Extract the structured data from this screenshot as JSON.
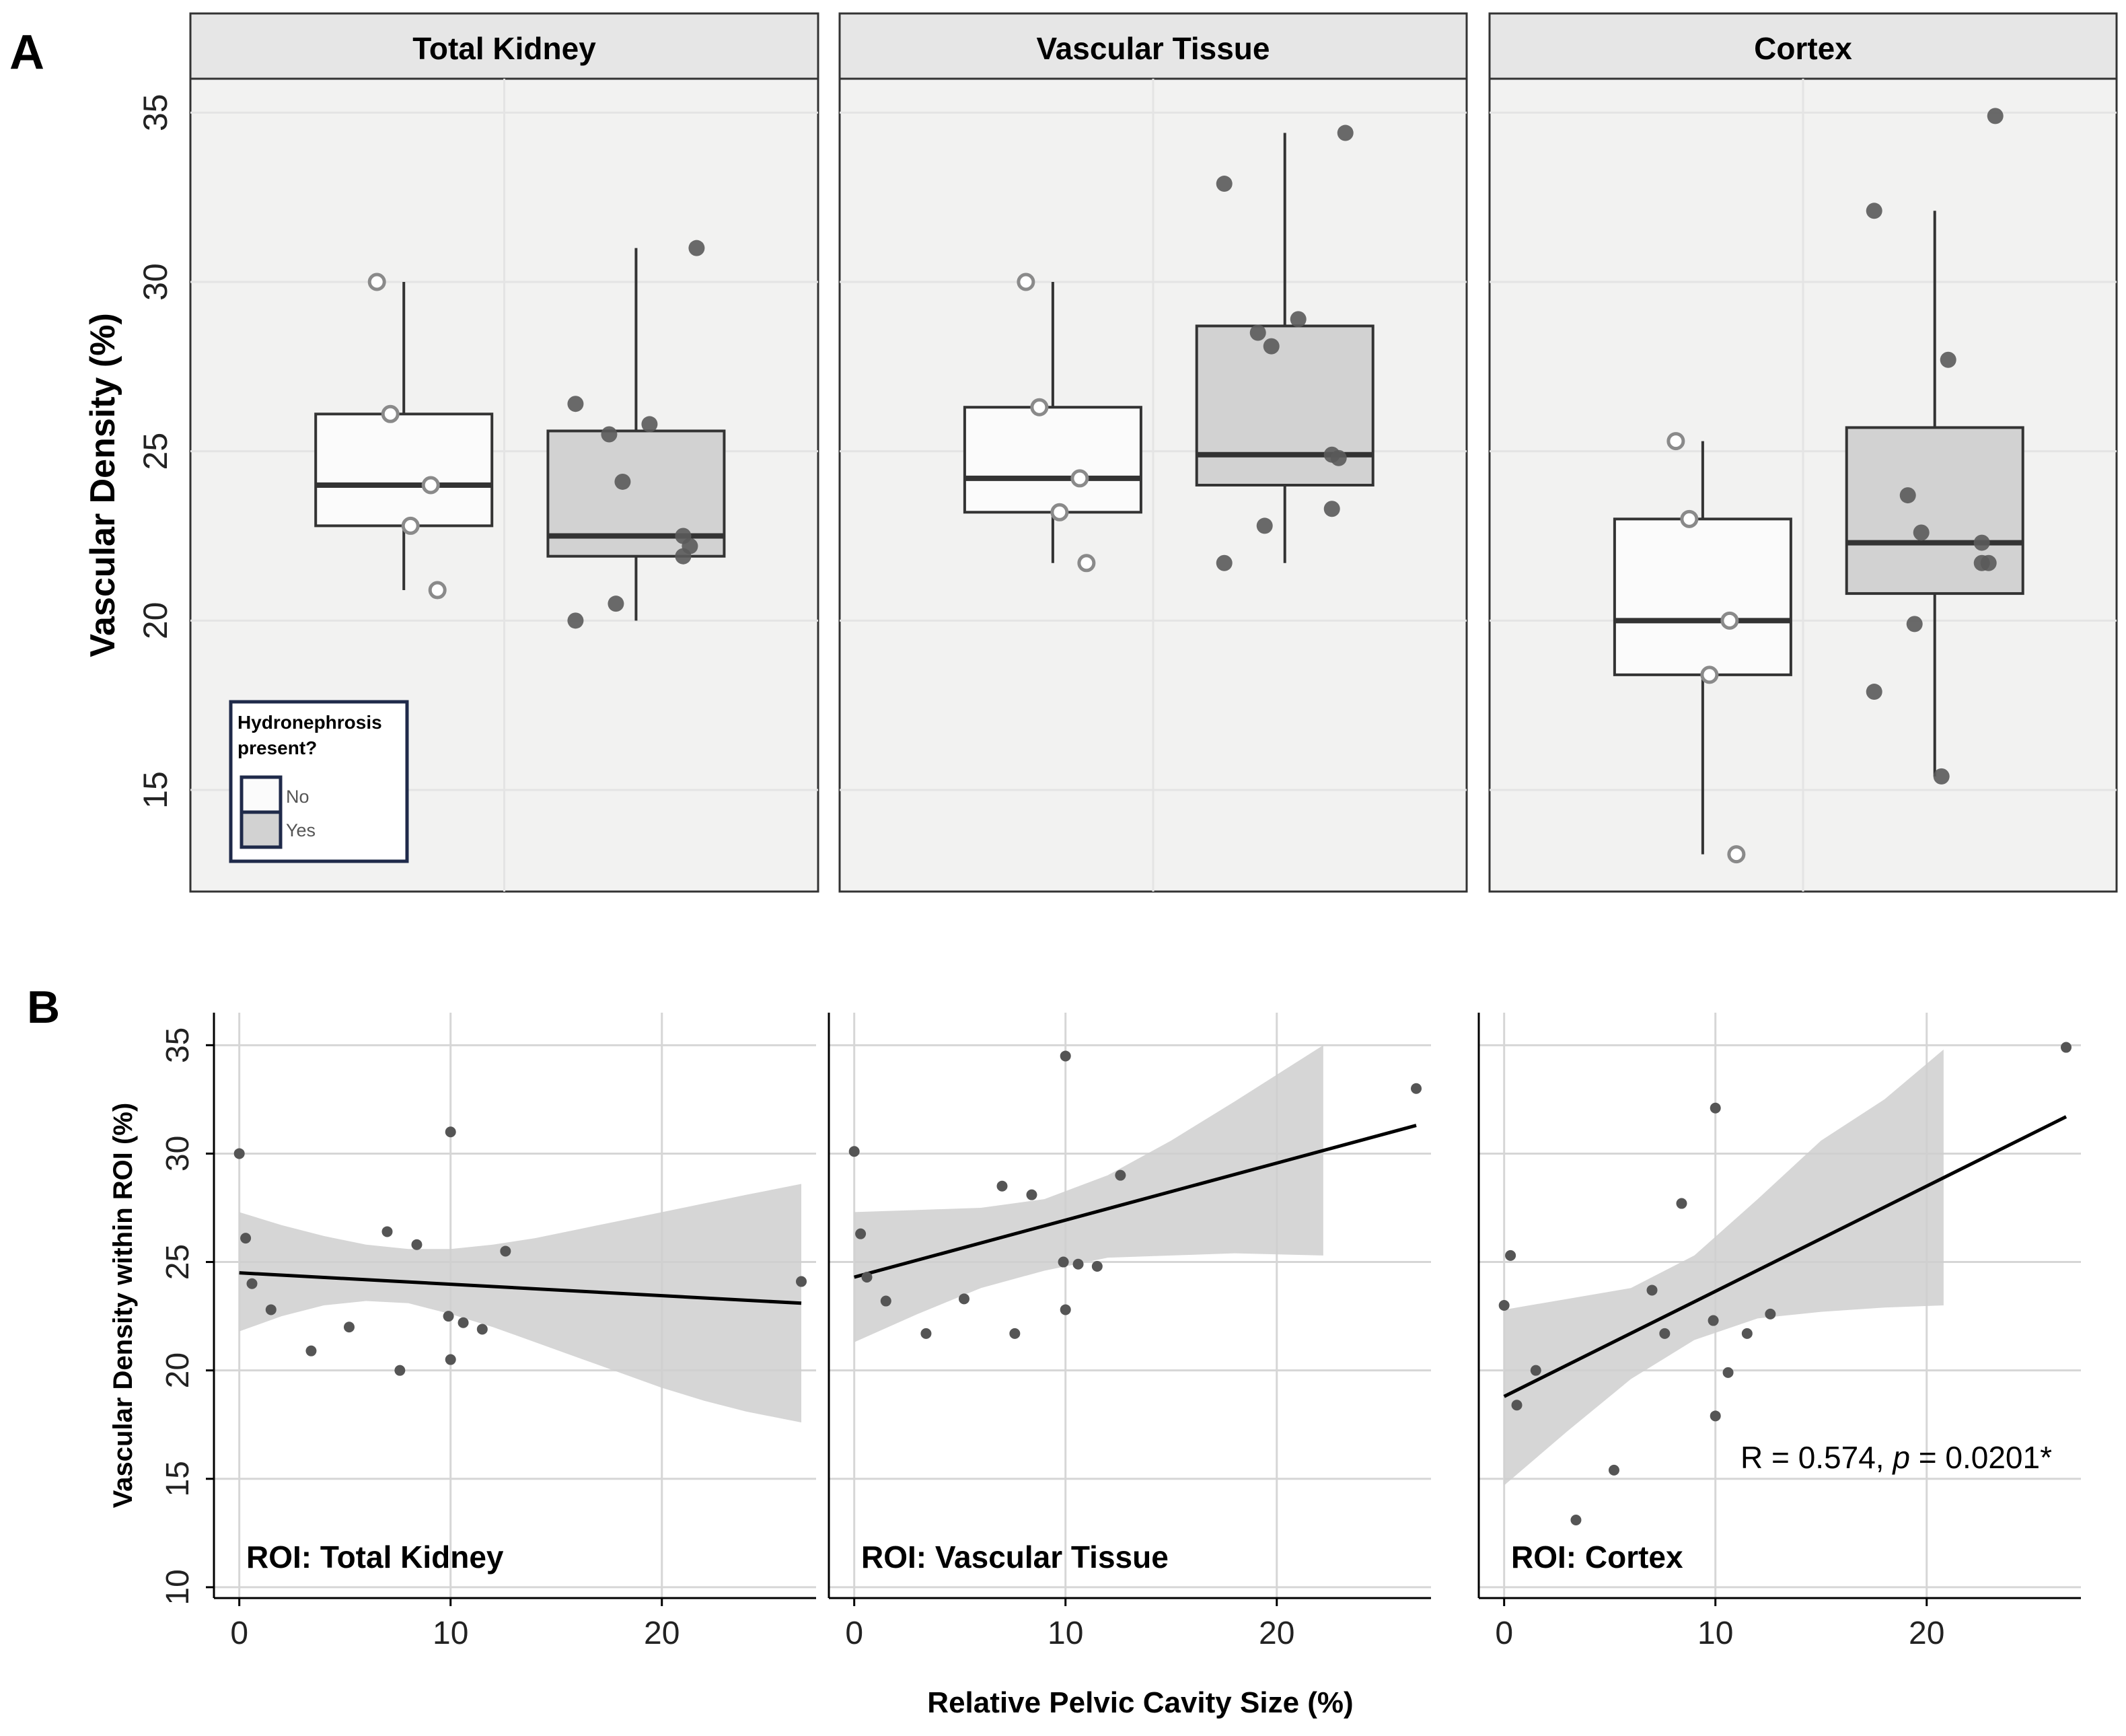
{
  "figure": {
    "panel_a_label": "A",
    "panel_b_label": "B"
  },
  "panel_a": {
    "ylabel": "Vascular Density (%)",
    "ylim": [
      12,
      36
    ],
    "yticks": [
      15,
      20,
      25,
      30,
      35
    ],
    "legend": {
      "title_line1": "Hydronephrosis",
      "title_line2": "present?",
      "entries": [
        "No",
        "Yes"
      ],
      "colors": {
        "No": "#fbfbfb",
        "Yes": "#d2d2d2"
      }
    }
  },
  "panel_b": {
    "ylabel": "Vascular Density within ROI (%)",
    "xlabel": "Relative Pelvic Cavity Size (%)",
    "ylim": [
      9.5,
      36.5
    ],
    "xlim": [
      -1.2,
      27.3
    ],
    "yticks": [
      10,
      15,
      20,
      25,
      30,
      35
    ],
    "xticks": [
      0,
      10,
      20
    ]
  },
  "chart_data": [
    {
      "type": "box",
      "title": "Total Kidney",
      "groups": [
        {
          "name": "No",
          "q1": 22.8,
          "median": 24.0,
          "q3": 26.1,
          "whisker_low": 20.9,
          "whisker_high": 30.0,
          "points": [
            30.0,
            26.1,
            24.0,
            22.8,
            20.9
          ]
        },
        {
          "name": "Yes",
          "q1": 21.9,
          "median": 22.5,
          "q3": 25.6,
          "whisker_low": 20.0,
          "whisker_high": 31.0,
          "points": [
            31.0,
            26.4,
            25.8,
            25.5,
            24.1,
            22.5,
            22.2,
            21.9,
            20.5,
            20.0
          ]
        }
      ]
    },
    {
      "type": "box",
      "title": "Vascular Tissue",
      "groups": [
        {
          "name": "No",
          "q1": 23.2,
          "median": 24.2,
          "q3": 26.3,
          "whisker_low": 21.7,
          "whisker_high": 30.0,
          "points": [
            30.0,
            26.3,
            24.2,
            23.2,
            21.7
          ]
        },
        {
          "name": "Yes",
          "q1": 24.0,
          "median": 24.9,
          "q3": 28.7,
          "whisker_low": 21.7,
          "whisker_high": 34.4,
          "points": [
            34.4,
            32.9,
            28.9,
            28.5,
            28.1,
            24.9,
            24.8,
            23.3,
            22.8,
            21.7
          ]
        }
      ]
    },
    {
      "type": "box",
      "title": "Cortex",
      "groups": [
        {
          "name": "No",
          "q1": 18.4,
          "median": 20.0,
          "q3": 23.0,
          "whisker_low": 13.1,
          "whisker_high": 25.3,
          "points": [
            25.3,
            23.0,
            20.0,
            18.4,
            13.1
          ]
        },
        {
          "name": "Yes",
          "q1": 20.8,
          "median": 22.3,
          "q3": 25.7,
          "whisker_low": 15.4,
          "whisker_high": 32.1,
          "points": [
            34.9,
            32.1,
            27.7,
            23.7,
            22.6,
            22.3,
            21.7,
            21.7,
            19.9,
            17.9,
            15.4
          ]
        }
      ]
    },
    {
      "type": "scatter",
      "roi_label": "ROI: Total Kidney",
      "points": [
        [
          0,
          30.0
        ],
        [
          0.3,
          26.1
        ],
        [
          0.6,
          24.0
        ],
        [
          1.5,
          22.8
        ],
        [
          3.4,
          20.9
        ],
        [
          5.2,
          22.0
        ],
        [
          7.0,
          26.4
        ],
        [
          7.6,
          20.0
        ],
        [
          8.4,
          25.8
        ],
        [
          10.0,
          31.0
        ],
        [
          9.9,
          22.5
        ],
        [
          10.0,
          20.5
        ],
        [
          10.6,
          22.2
        ],
        [
          11.5,
          21.9
        ],
        [
          12.6,
          25.5
        ],
        [
          26.6,
          24.1
        ]
      ],
      "fit": {
        "x": [
          0,
          26.6
        ],
        "y": [
          24.5,
          23.1
        ]
      },
      "band": {
        "x": [
          0,
          2,
          4,
          6,
          8,
          10,
          12,
          14,
          16,
          18,
          20,
          22,
          24,
          26.6
        ],
        "lower": [
          21.8,
          22.5,
          23.0,
          23.2,
          23.1,
          22.6,
          22.0,
          21.3,
          20.6,
          19.9,
          19.2,
          18.6,
          18.1,
          17.6
        ],
        "upper": [
          27.3,
          26.7,
          26.2,
          25.8,
          25.6,
          25.6,
          25.8,
          26.1,
          26.5,
          26.9,
          27.3,
          27.7,
          28.1,
          28.6
        ]
      }
    },
    {
      "type": "scatter",
      "roi_label": "ROI: Vascular Tissue",
      "points": [
        [
          0,
          30.1
        ],
        [
          0.3,
          26.3
        ],
        [
          0.6,
          24.3
        ],
        [
          1.5,
          23.2
        ],
        [
          3.4,
          21.7
        ],
        [
          5.2,
          23.3
        ],
        [
          7.0,
          28.5
        ],
        [
          7.6,
          21.7
        ],
        [
          8.4,
          28.1
        ],
        [
          10.0,
          34.5
        ],
        [
          9.9,
          25.0
        ],
        [
          10.0,
          22.8
        ],
        [
          10.6,
          24.9
        ],
        [
          11.5,
          24.8
        ],
        [
          12.6,
          29.0
        ],
        [
          26.6,
          33.0
        ]
      ],
      "fit": {
        "x": [
          0,
          26.6
        ],
        "y": [
          24.3,
          31.3
        ]
      },
      "band": {
        "x": [
          0,
          3,
          6,
          9,
          12,
          15,
          18,
          22.2
        ],
        "lower": [
          21.3,
          22.6,
          23.8,
          24.6,
          25.2,
          25.3,
          25.4,
          25.3
        ],
        "upper": [
          27.3,
          27.4,
          27.5,
          27.9,
          29.0,
          30.6,
          32.4,
          35.0
        ]
      }
    },
    {
      "type": "scatter",
      "roi_label": "ROI: Cortex",
      "annotation": "R = 0.574, p = 0.0201*",
      "annotation_parts": {
        "prefix": "R = 0.574, ",
        "italic": "p",
        "suffix": " = 0.0201*"
      },
      "points": [
        [
          0,
          23.0
        ],
        [
          0.3,
          25.3
        ],
        [
          0.6,
          18.4
        ],
        [
          1.5,
          20.0
        ],
        [
          3.4,
          13.1
        ],
        [
          5.2,
          15.4
        ],
        [
          7.0,
          23.7
        ],
        [
          7.6,
          21.7
        ],
        [
          8.4,
          27.7
        ],
        [
          10.0,
          32.1
        ],
        [
          9.9,
          22.3
        ],
        [
          10.0,
          17.9
        ],
        [
          10.6,
          19.9
        ],
        [
          11.5,
          21.7
        ],
        [
          12.6,
          22.6
        ],
        [
          26.6,
          34.9
        ]
      ],
      "fit": {
        "x": [
          0,
          26.6
        ],
        "y": [
          18.8,
          31.7
        ]
      },
      "band": {
        "x": [
          0,
          3,
          6,
          9,
          12,
          15,
          18,
          20.8
        ],
        "lower": [
          14.7,
          17.2,
          19.6,
          21.4,
          22.4,
          22.7,
          22.9,
          23.0
        ],
        "upper": [
          22.8,
          23.3,
          23.8,
          25.3,
          27.9,
          30.6,
          32.5,
          34.8
        ]
      }
    }
  ]
}
